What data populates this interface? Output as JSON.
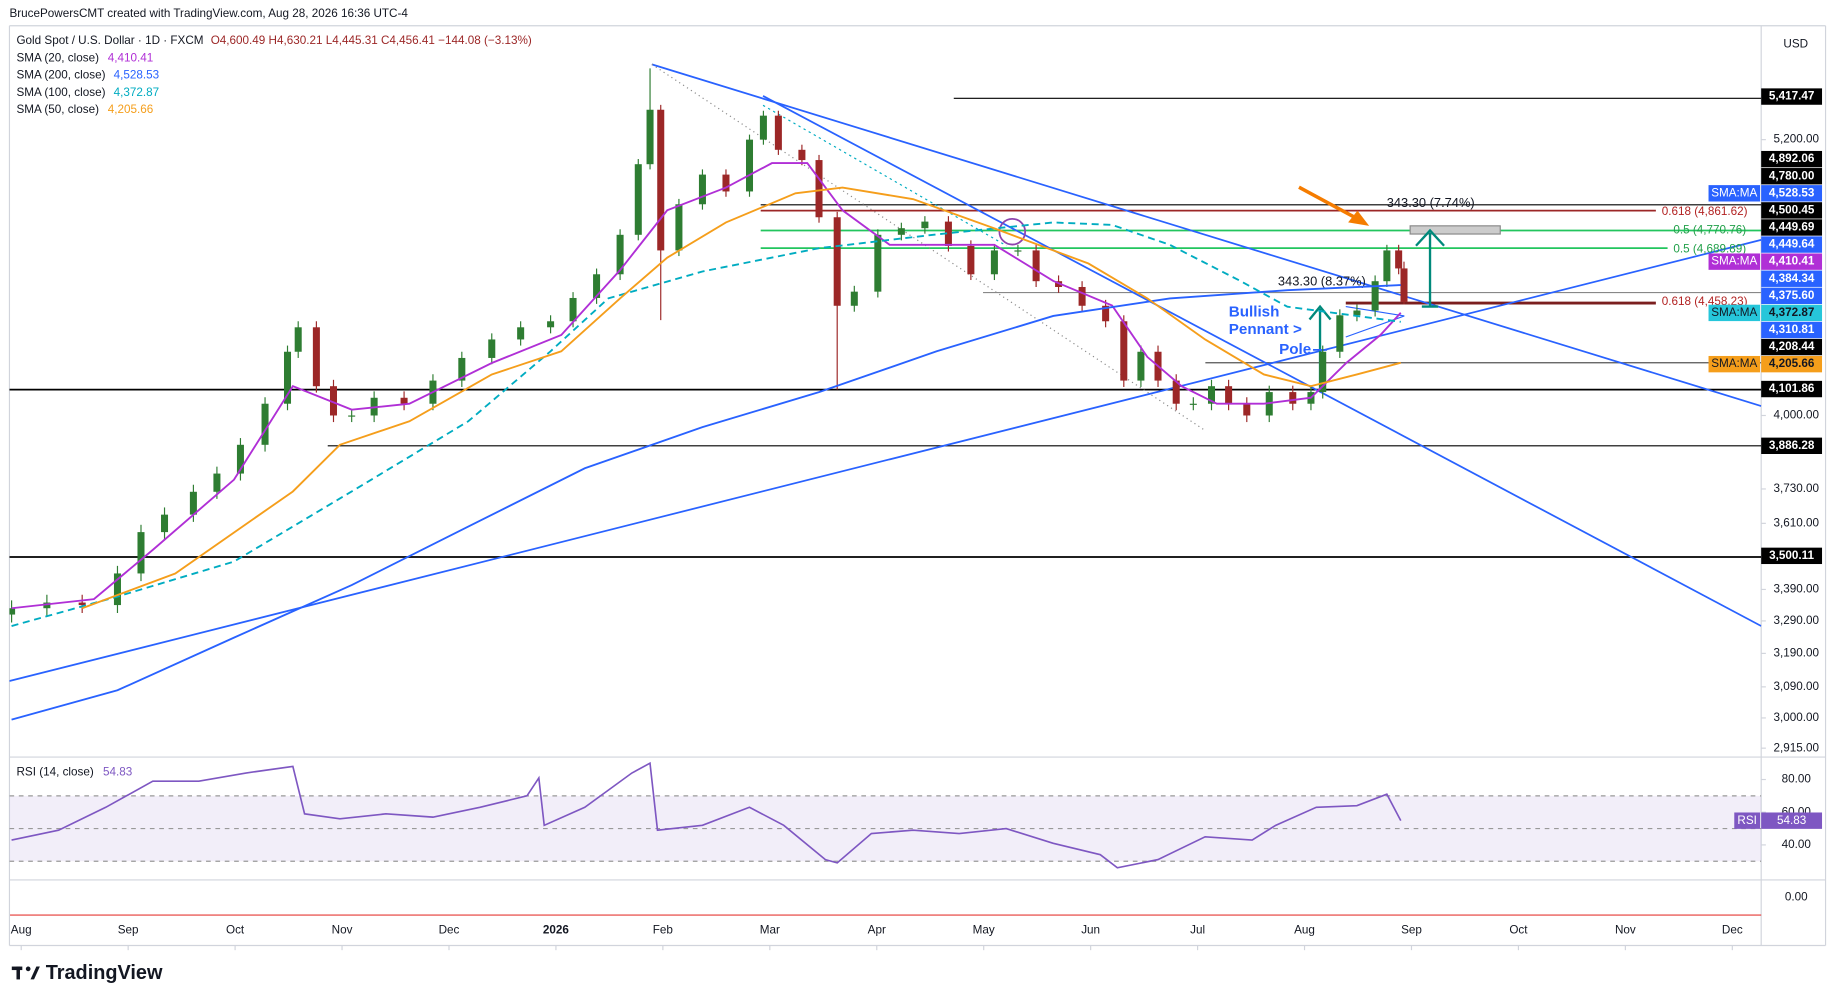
{
  "header": {
    "credit": "BrucePowersCMT created with TradingView.com, Aug 28, 2026 16:36 UTC-4",
    "symbol": "Gold Spot / U.S. Dollar · 1D · FXCM",
    "ohlc": "O4,600.49 H4,630.21 L4,445.31 C4,456.41 −144.08 (−3.13%)"
  },
  "currency": "USD",
  "brand": "TradingView",
  "chart_data": [
    {
      "type": "candlestick",
      "x": [
        -0.09,
        0.24,
        0.57,
        0.9,
        1.12,
        1.34,
        1.61,
        1.83,
        2.05,
        2.28,
        2.49,
        2.59,
        2.76,
        2.92,
        3.09,
        3.3,
        3.58,
        3.85,
        4.12,
        4.4,
        4.67,
        4.95,
        5.16,
        5.38,
        5.6,
        5.77,
        5.88,
        5.98,
        6.15,
        6.37,
        6.59,
        6.81,
        6.94,
        7.08,
        7.3,
        7.46,
        7.63,
        7.79,
        8.01,
        8.23,
        8.45,
        8.67,
        8.88,
        9.1,
        9.32,
        9.49,
        9.7,
        9.92,
        10.14,
        10.31,
        10.47,
        10.63,
        10.8,
        10.96,
        11.13,
        11.29,
        11.46,
        11.67,
        11.89,
        12.06,
        12.17,
        12.33,
        12.49,
        12.66,
        12.77,
        12.88,
        12.93
      ],
      "open": [
        3310,
        3330,
        3348,
        3340,
        3442,
        3580,
        3640,
        3720,
        3785,
        3890,
        4045,
        4250,
        4350,
        4113,
        4000,
        4000,
        4068,
        4045,
        4135,
        4225,
        4300,
        4350,
        4375,
        4473,
        4575,
        4750,
        5080,
        5350,
        4680,
        4890,
        5030,
        4950,
        5200,
        5320,
        5150,
        5100,
        4830,
        4440,
        4500,
        4750,
        4780,
        4810,
        4700,
        4575,
        4680,
        4680,
        4545,
        4520,
        4440,
        4375,
        4135,
        4250,
        4135,
        4045,
        4045,
        4113,
        4045,
        4000,
        4090,
        4045,
        4090,
        4250,
        4400,
        4420,
        4545,
        4680,
        4600.49
      ],
      "high": [
        3355,
        3373,
        3373,
        3467,
        3605,
        3665,
        3745,
        3810,
        3915,
        4070,
        4275,
        4375,
        4375,
        4138,
        4025,
        4093,
        4093,
        4160,
        4250,
        4325,
        4375,
        4400,
        4498,
        4600,
        4775,
        5105,
        5565,
        5375,
        4915,
        5055,
        5055,
        5225,
        5345,
        5345,
        5175,
        5125,
        4855,
        4525,
        4775,
        4805,
        4835,
        4835,
        4725,
        4705,
        4705,
        4705,
        4570,
        4545,
        4465,
        4400,
        4275,
        4275,
        4160,
        4070,
        4138,
        4138,
        4070,
        4115,
        4115,
        4115,
        4275,
        4425,
        4445,
        4570,
        4705,
        4705,
        4630.21
      ],
      "low": [
        3285,
        3305,
        3315,
        3315,
        3417,
        3555,
        3615,
        3695,
        3760,
        3865,
        4020,
        4225,
        4088,
        3975,
        3975,
        3975,
        4020,
        4020,
        4110,
        4200,
        4275,
        4325,
        4350,
        4448,
        4550,
        4725,
        5055,
        4380,
        4655,
        4865,
        4925,
        4925,
        5175,
        5125,
        5075,
        4805,
        4100,
        4415,
        4475,
        4725,
        4755,
        4675,
        4550,
        4550,
        4655,
        4520,
        4495,
        4415,
        4350,
        4110,
        4110,
        4110,
        4020,
        4020,
        4020,
        4020,
        3975,
        3975,
        4020,
        4020,
        4065,
        4225,
        4375,
        4395,
        4520,
        4575,
        4445.31
      ],
      "close": [
        3330,
        3348,
        3340,
        3442,
        3580,
        3640,
        3720,
        3785,
        3890,
        4045,
        4250,
        4350,
        4113,
        4000,
        4000,
        4068,
        4045,
        4135,
        4225,
        4300,
        4350,
        4375,
        4473,
        4575,
        4750,
        5080,
        5350,
        4680,
        4890,
        5030,
        4950,
        5200,
        5320,
        5150,
        5100,
        4830,
        4440,
        4500,
        4750,
        4780,
        4810,
        4700,
        4575,
        4680,
        4680,
        4545,
        4520,
        4440,
        4375,
        4135,
        4250,
        4135,
        4045,
        4045,
        4113,
        4045,
        4000,
        4090,
        4045,
        4090,
        4250,
        4400,
        4420,
        4545,
        4680,
        4600.49,
        4456.41
      ],
      "up_color": "#2e7d32",
      "down_color": "#9c2727",
      "series": [
        {
          "name": "SMA (20, close)",
          "color": "#b02fd6",
          "last_label": "4,410.41",
          "x": [
            -0.09,
            0.68,
            1.23,
            1.99,
            2.54,
            3.09,
            3.63,
            4.4,
            5.05,
            5.6,
            6.04,
            6.59,
            7.02,
            7.35,
            7.68,
            8.12,
            8.56,
            9.1,
            9.65,
            10.2,
            10.53,
            10.85,
            11.18,
            11.62,
            12.06,
            12.39,
            12.71,
            12.9
          ],
          "values": [
            3330,
            3359,
            3520,
            3763,
            4113,
            4022,
            4045,
            4205,
            4318,
            4593,
            4862,
            4968,
            5085,
            5085,
            4862,
            4705,
            4705,
            4705,
            4546,
            4441,
            4229,
            4113,
            4045,
            4045,
            4068,
            4205,
            4318,
            4410.41
          ]
        },
        {
          "name": "SMA (200, close)",
          "color": "#2962ff",
          "last_label": "4,528.53",
          "x": [
            -0.09,
            0.9,
            1.99,
            3.09,
            4.18,
            5.27,
            6.37,
            7.46,
            8.56,
            9.65,
            10.74,
            11.84,
            12.9
          ],
          "values": [
            2995,
            3080,
            3238,
            3404,
            3599,
            3804,
            3956,
            4090,
            4252,
            4397,
            4471,
            4506,
            4528.53
          ]
        },
        {
          "name": "SMA (100, close)",
          "color": "#00acc1",
          "last_label": "4,372.87",
          "style": "dashed",
          "x": [
            -0.09,
            0.9,
            1.99,
            3.09,
            4.18,
            4.95,
            5.49,
            6.37,
            7.46,
            8.56,
            9.65,
            10.2,
            10.74,
            11.4,
            11.84,
            12.9
          ],
          "values": [
            3274,
            3367,
            3481,
            3721,
            3978,
            4252,
            4471,
            4587,
            4690,
            4752,
            4806,
            4795,
            4705,
            4546,
            4436,
            4372.87
          ]
        },
        {
          "name": "SMA (50, close)",
          "color": "#f59e1b",
          "last_label": "4,205.66",
          "x": [
            0.57,
            1.44,
            2.54,
            2.98,
            3.63,
            4.4,
            5.05,
            5.6,
            6.04,
            6.59,
            7.24,
            7.68,
            8.34,
            9.1,
            9.98,
            10.53,
            11.07,
            11.62,
            12.06,
            12.49,
            12.9
          ],
          "values": [
            3330,
            3442,
            3721,
            3890,
            3978,
            4159,
            4252,
            4471,
            4648,
            4806,
            4941,
            4968,
            4914,
            4779,
            4622,
            4471,
            4300,
            4159,
            4113,
            4159,
            4205.66
          ]
        }
      ],
      "xlim": [
        -0.11,
        16.27
      ],
      "xticks": [
        {
          "value": 0,
          "label": "Aug"
        },
        {
          "value": 1,
          "label": "Sep"
        },
        {
          "value": 2,
          "label": "Oct"
        },
        {
          "value": 3,
          "label": "Nov"
        },
        {
          "value": 4,
          "label": "Dec"
        },
        {
          "value": 5,
          "label": "2026"
        },
        {
          "value": 6,
          "label": "Feb"
        },
        {
          "value": 7,
          "label": "Mar"
        },
        {
          "value": 8,
          "label": "Apr"
        },
        {
          "value": 9,
          "label": "May"
        },
        {
          "value": 10,
          "label": "Jun"
        },
        {
          "value": 11,
          "label": "Jul"
        },
        {
          "value": 12,
          "label": "Aug"
        },
        {
          "value": 13,
          "label": "Sep"
        },
        {
          "value": 14,
          "label": "Oct"
        },
        {
          "value": 15,
          "label": "Nov"
        },
        {
          "value": 16,
          "label": "Dec"
        }
      ],
      "ylim": [
        2900,
        5795
      ],
      "log_scale": true,
      "grid": false,
      "yticks": [
        {
          "value": 5200,
          "label": "5,200.00"
        },
        {
          "value": 4000,
          "label": "4,000.00"
        },
        {
          "value": 3730,
          "label": "3,730.00"
        },
        {
          "value": 3610,
          "label": "3,610.00"
        },
        {
          "value": 3390,
          "label": "3,390.00"
        },
        {
          "value": 3290,
          "label": "3,290.00"
        },
        {
          "value": 3190,
          "label": "3,190.00"
        },
        {
          "value": 3090,
          "label": "3,090.00"
        },
        {
          "value": 3000,
          "label": "3,000.00"
        },
        {
          "value": 2915,
          "label": "2,915.00"
        }
      ],
      "price_tags": [
        {
          "value": 5417.47,
          "label": "5,417.47"
        },
        {
          "value": 4101.86,
          "label": "4,101.86"
        },
        {
          "value": 3886.28,
          "label": "3,886.28"
        },
        {
          "value": 3500.11,
          "label": "3,500.11"
        }
      ],
      "stacked_tags": [
        {
          "label": "4,892.06",
          "color": "#000000"
        },
        {
          "label": "4,780.00",
          "color": "#000000"
        },
        {
          "prefix": "SMA:MA",
          "label": "4,528.53",
          "color": "#2962ff"
        },
        {
          "label": "4,500.45",
          "color": "#000000"
        },
        {
          "label": "4,449.69",
          "color": "#000000"
        },
        {
          "label": "4,449.64",
          "color": "#2962ff"
        },
        {
          "prefix": "SMA:MA",
          "label": "4,410.41",
          "color": "#b02fd6"
        },
        {
          "label": "4,384.34",
          "color": "#2962ff"
        },
        {
          "label": "4,375.60",
          "color": "#2962ff"
        },
        {
          "prefix": "SMA:MA",
          "label": "4,372.87",
          "color": "#26c6da"
        },
        {
          "label": "4,310.81",
          "color": "#2962ff"
        },
        {
          "label": "4,208.44",
          "color": "#000000"
        },
        {
          "prefix": "SMA:MA",
          "label": "4,205.66",
          "color": "#f59e1b"
        }
      ],
      "annotations": [
        "343.30 (7.74%)",
        "343.30 (8.37%)",
        "0.618 (4,861.62)",
        "0.5 (4,770.76)",
        "0.5 (4,689.89)",
        "0.618 (4,458.23)",
        "Bullish",
        "Pennant >",
        "Pole"
      ]
    },
    {
      "type": "line",
      "title": "RSI (14, close)",
      "last_label": "54.83",
      "tag": "RSI",
      "series": [
        {
          "name": "RSI",
          "color": "#7e57c2",
          "x": [
            -0.09,
            0.35,
            0.79,
            1.23,
            1.66,
            2.1,
            2.54,
            2.65,
            2.98,
            3.41,
            3.85,
            4.29,
            4.73,
            4.84,
            4.89,
            5.27,
            5.71,
            5.88,
            5.95,
            6.37,
            6.81,
            7.13,
            7.52,
            7.63,
            7.95,
            8.34,
            8.77,
            9.21,
            9.65,
            10.09,
            10.25,
            10.63,
            11.07,
            11.51,
            11.73,
            12.11,
            12.49,
            12.77,
            12.9
          ],
          "values": [
            43,
            49,
            63,
            79,
            79,
            84,
            88,
            59,
            56,
            59,
            57,
            63,
            70,
            81,
            52,
            63,
            84,
            90,
            49,
            52,
            63,
            52,
            31,
            29,
            47,
            49,
            47,
            50,
            41,
            34,
            26,
            31,
            45,
            43,
            52,
            63,
            64,
            71,
            54.83
          ]
        }
      ],
      "ylim": [
        20,
        93
      ],
      "yticks": [
        {
          "value": 40,
          "label": "40.00"
        },
        {
          "value": 60,
          "label": "60.00"
        },
        {
          "value": 80,
          "label": "80.00"
        }
      ],
      "band": [
        30,
        70
      ],
      "midline": 50,
      "zero_pane_label": "0.00"
    }
  ]
}
